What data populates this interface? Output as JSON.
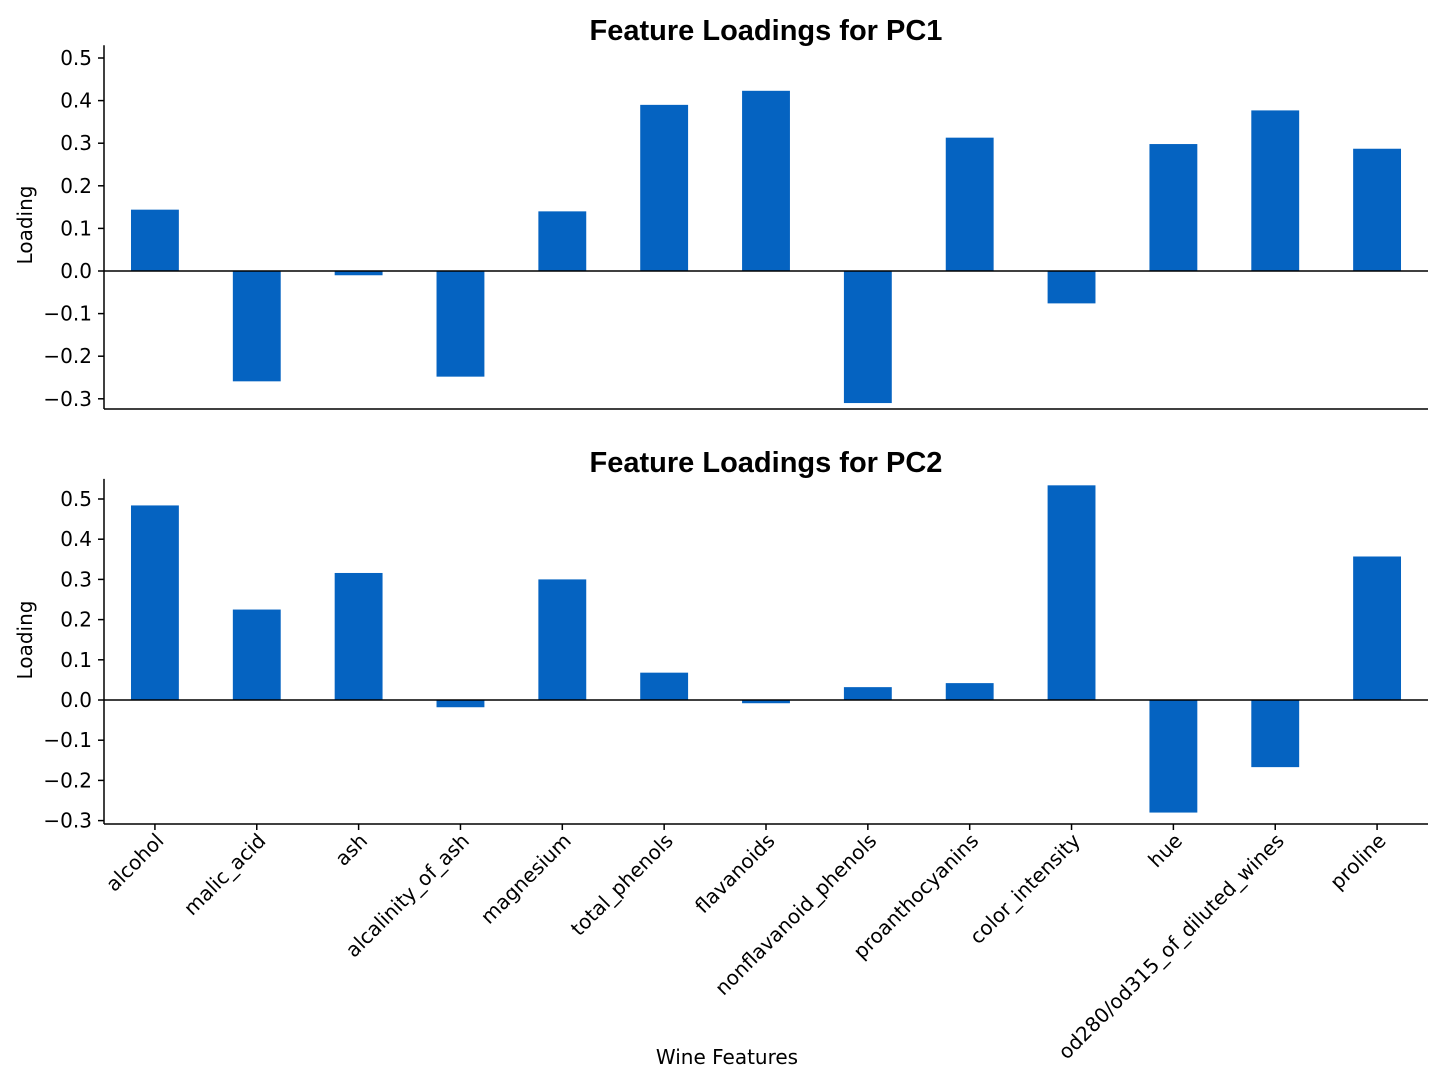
{
  "chart_data": [
    {
      "type": "bar",
      "title": "Feature Loadings for PC1",
      "ylabel": "Loading",
      "xlabel": "",
      "ylim": [
        -0.32,
        0.53
      ],
      "yticks": [
        0.5,
        0.4,
        0.3,
        0.2,
        0.1,
        0.0,
        -0.1,
        -0.2,
        -0.3
      ],
      "ytick_labels": [
        "0.5",
        "0.4",
        "0.3",
        "0.2",
        "0.1",
        "0.0",
        "−0.1",
        "−0.2",
        "−0.3"
      ],
      "categories": [
        "alcohol",
        "malic_acid",
        "ash",
        "alcalinity_of_ash",
        "magnesium",
        "total_phenols",
        "flavanoids",
        "nonflavanoid_phenols",
        "proanthocyanins",
        "color_intensity",
        "hue",
        "od280/od315_of_diluted_wines",
        "proline"
      ],
      "values": [
        0.144,
        -0.259,
        -0.01,
        -0.248,
        0.14,
        0.39,
        0.423,
        -0.31,
        0.313,
        -0.076,
        0.298,
        0.377,
        0.287
      ],
      "color": "#0563c1",
      "grid": false,
      "show_xtick_labels": false
    },
    {
      "type": "bar",
      "title": "Feature Loadings for PC2",
      "ylabel": "Loading",
      "xlabel": "Wine Features",
      "ylim": [
        -0.31,
        0.55
      ],
      "yticks": [
        0.5,
        0.4,
        0.3,
        0.2,
        0.1,
        0.0,
        -0.1,
        -0.2,
        -0.3
      ],
      "ytick_labels": [
        "0.5",
        "0.4",
        "0.3",
        "0.2",
        "0.1",
        "0.0",
        "−0.1",
        "−0.2",
        "−0.3"
      ],
      "categories": [
        "alcohol",
        "malic_acid",
        "ash",
        "alcalinity_of_ash",
        "magnesium",
        "total_phenols",
        "flavanoids",
        "nonflavanoid_phenols",
        "proanthocyanins",
        "color_intensity",
        "hue",
        "od280/od315_of_diluted_wines",
        "proline"
      ],
      "values": [
        0.484,
        0.225,
        0.316,
        -0.018,
        0.3,
        0.068,
        -0.008,
        0.032,
        0.042,
        0.534,
        -0.28,
        -0.167,
        0.357
      ],
      "color": "#0563c1",
      "grid": false,
      "show_xtick_labels": true
    }
  ]
}
